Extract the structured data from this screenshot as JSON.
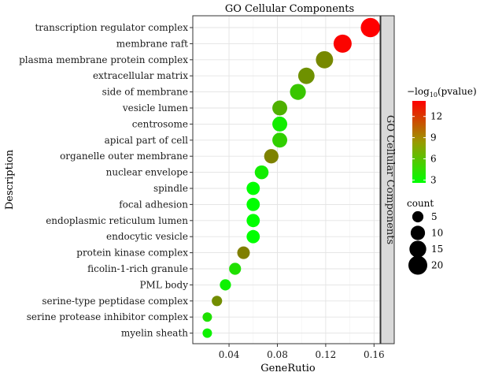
{
  "chart_data": {
    "type": "scatter",
    "title": "GO Cellular Components",
    "strip_label": "GO Cellular Components",
    "xlabel": "GeneRutio",
    "ylabel": "Description",
    "xlim": [
      0.01,
      0.165
    ],
    "x_ticks": [
      0.04,
      0.08,
      0.12,
      0.16
    ],
    "x_tick_labels": [
      "0.04",
      "0.08",
      "0.12",
      "0.16"
    ],
    "categories": [
      "transcription regulator complex",
      "membrane raft",
      "plasma membrane protein complex",
      "extracellular matrix",
      "side of membrane",
      "vesicle lumen",
      "centrosome",
      "apical part of cell",
      "organelle outer membrane",
      "nuclear envelope",
      "spindle",
      "focal adhesion",
      "endoplasmic reticulum lumen",
      "endocytic vesicle",
      "protein kinase complex",
      "ficolin-1-rich granule",
      "PML body",
      "serine-type peptidase complex",
      "serine protease inhibitor complex",
      "myelin sheath"
    ],
    "gene_ratio": [
      0.157,
      0.134,
      0.119,
      0.104,
      0.097,
      0.082,
      0.082,
      0.082,
      0.075,
      0.067,
      0.06,
      0.06,
      0.06,
      0.06,
      0.052,
      0.045,
      0.037,
      0.03,
      0.022,
      0.022
    ],
    "count": [
      21,
      18,
      16,
      14,
      13,
      11,
      11,
      11,
      10,
      9,
      8,
      8,
      8,
      8,
      7,
      6,
      5,
      4,
      3,
      3
    ],
    "neg_log10_pvalue": [
      14.2,
      14.0,
      8.0,
      7.6,
      5.2,
      6.2,
      3.4,
      4.8,
      8.3,
      3.4,
      2.6,
      2.6,
      2.6,
      2.6,
      8.4,
      4.0,
      3.2,
      7.8,
      4.0,
      3.2
    ],
    "color_legend": {
      "title_prefix": "−log",
      "title_subscript": "10",
      "title_suffix": "(pvalue)",
      "ticks": [
        3,
        6,
        9,
        12
      ],
      "tick_labels": [
        "3",
        "6",
        "9",
        "12"
      ],
      "range": [
        2.6,
        14.2
      ],
      "colors": [
        "#00ff00",
        "#ff0000"
      ]
    },
    "size_legend": {
      "title": "count",
      "values": [
        5,
        10,
        15,
        20
      ],
      "labels": [
        "5",
        "10",
        "15",
        "20"
      ]
    },
    "grid": true
  }
}
